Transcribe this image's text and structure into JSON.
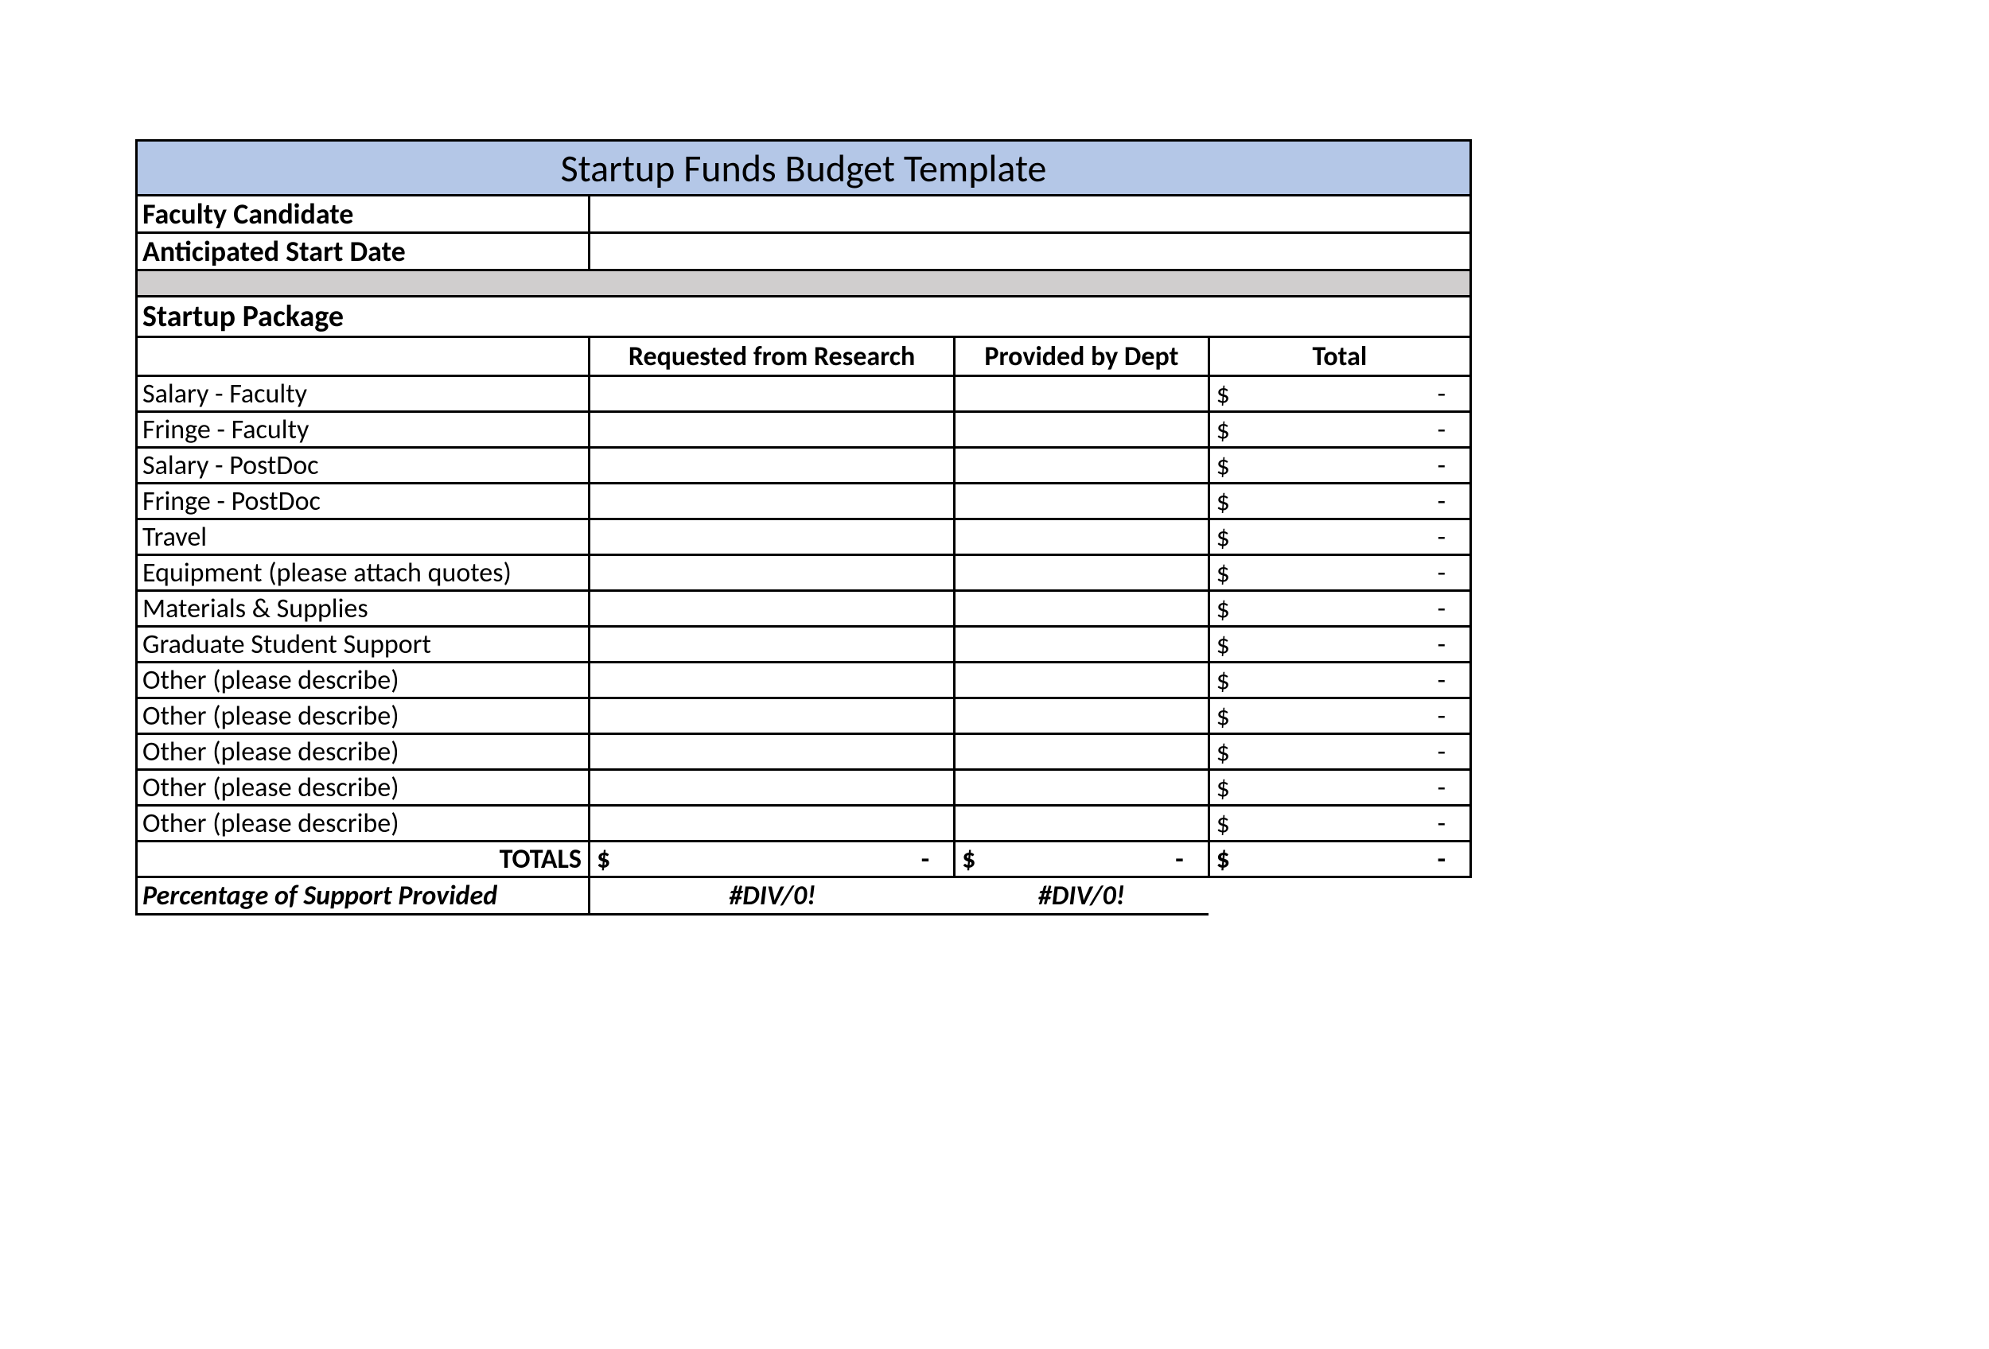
{
  "title": "Startup Funds Budget Template",
  "info": {
    "faculty_label": "Faculty Candidate",
    "faculty_value": "",
    "date_label": "Anticipated Start Date",
    "date_value": ""
  },
  "section_title": "Startup Package",
  "columns": {
    "c1": "",
    "c2": "Requested from Research",
    "c3": "Provided by Dept",
    "c4": "Total"
  },
  "currency_symbol": "$",
  "dash": "-",
  "rows": [
    {
      "label": "Salary - Faculty"
    },
    {
      "label": "Fringe - Faculty"
    },
    {
      "label": "Salary - PostDoc"
    },
    {
      "label": "Fringe - PostDoc"
    },
    {
      "label": "Travel"
    },
    {
      "label": "Equipment (please attach quotes)"
    },
    {
      "label": "Materials & Supplies"
    },
    {
      "label": "Graduate Student Support"
    },
    {
      "label": "Other (please describe)"
    },
    {
      "label": "Other (please describe)"
    },
    {
      "label": "Other (please describe)"
    },
    {
      "label": "Other (please describe)"
    },
    {
      "label": "Other (please describe)"
    }
  ],
  "totals": {
    "label": "TOTALS",
    "research": "-",
    "dept": "-",
    "total": "-"
  },
  "percentage": {
    "label": "Percentage of Support Provided",
    "research": "#DIV/0!",
    "dept": "#DIV/0!",
    "total": ""
  },
  "colors": {
    "title_bg": "#b4c7e7",
    "spacer_bg": "#d0cece",
    "border": "#000000",
    "text": "#000000",
    "page_bg": "#ffffff"
  }
}
